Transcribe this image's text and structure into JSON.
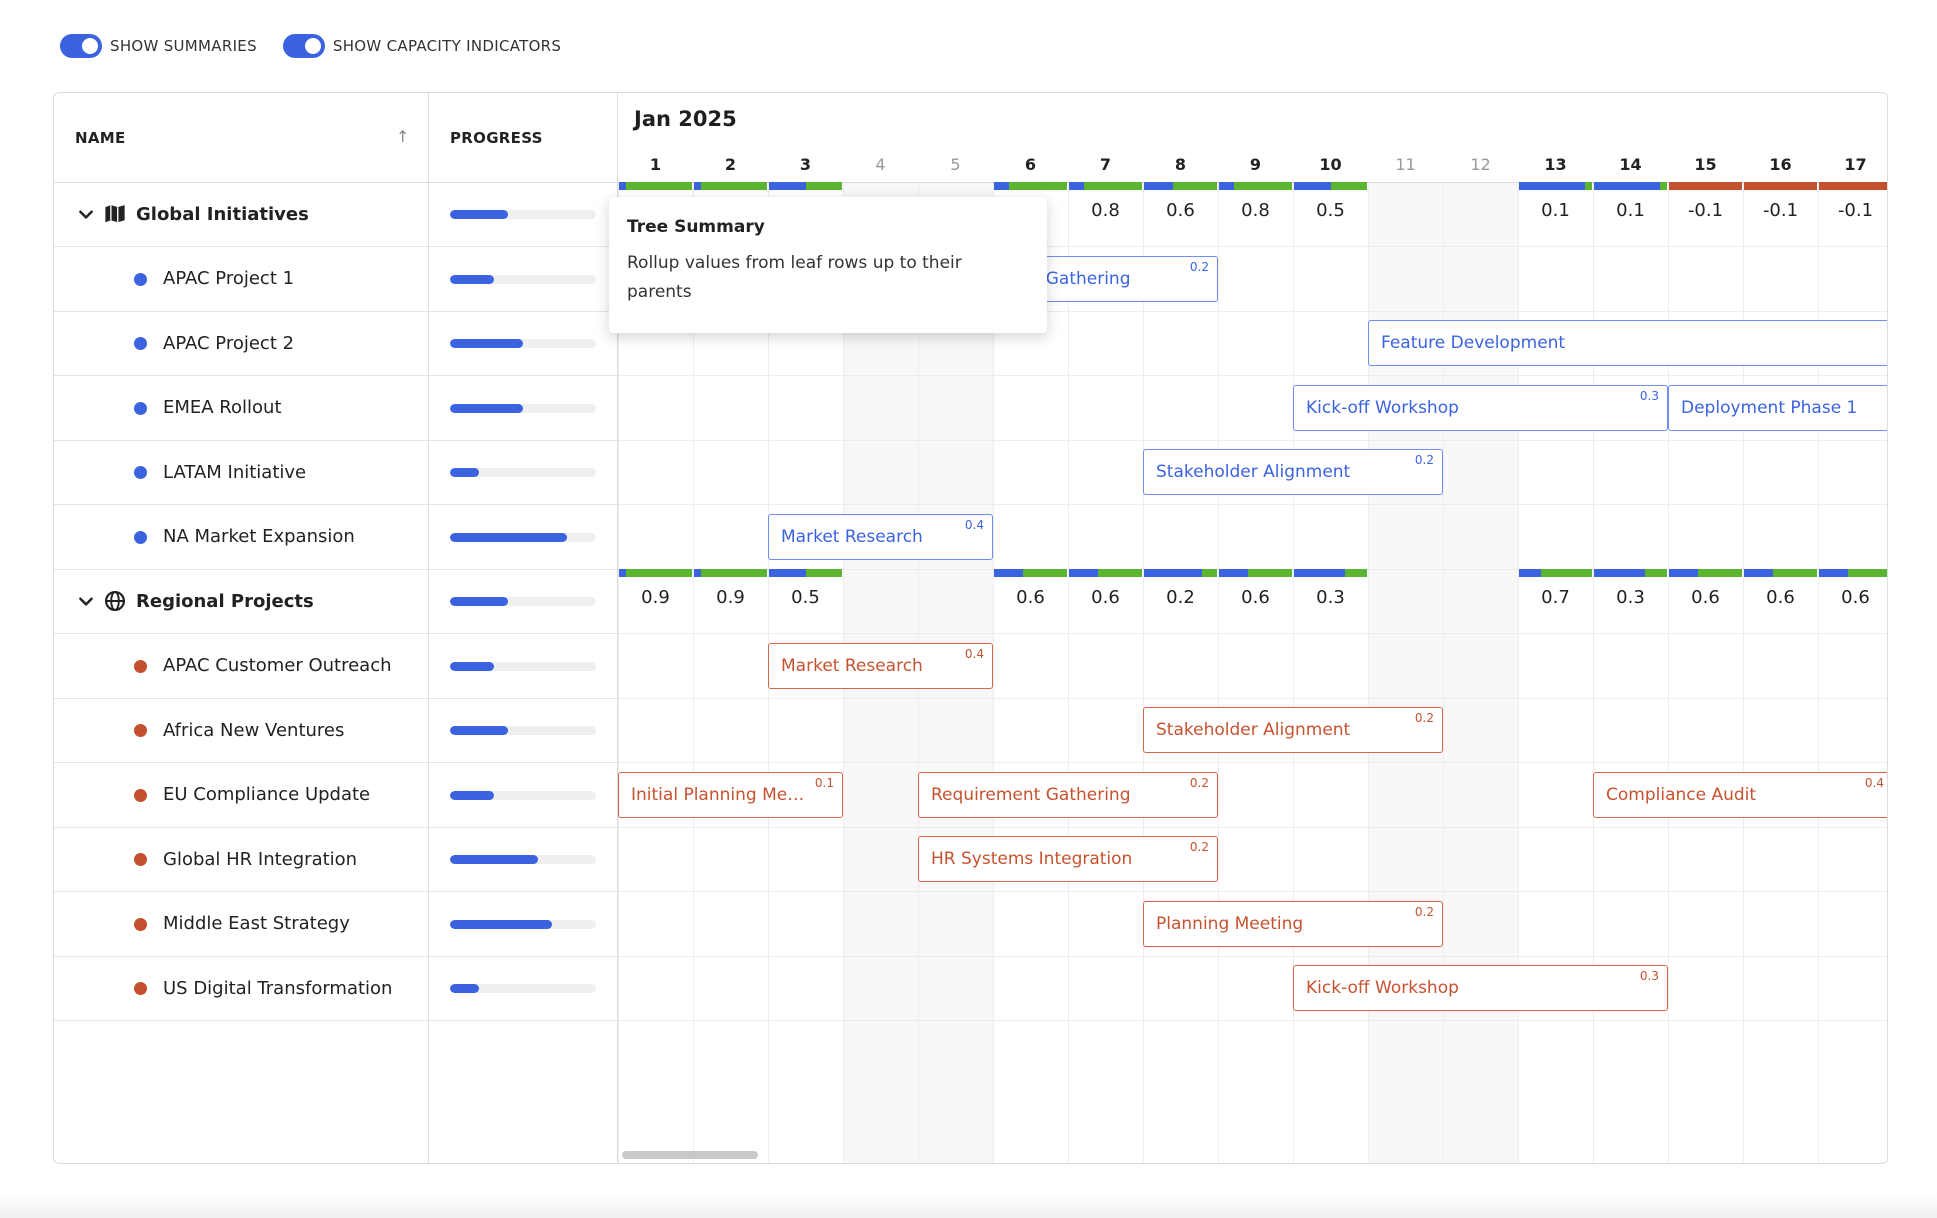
{
  "toggles": [
    {
      "label": "SHOW SUMMARIES",
      "on": true
    },
    {
      "label": "SHOW CAPACITY INDICATORS",
      "on": true
    }
  ],
  "columns": {
    "name": "NAME",
    "progress": "PROGRESS"
  },
  "timeline": {
    "month": "Jan 2025",
    "days": [
      "1",
      "2",
      "3",
      "4",
      "5",
      "6",
      "7",
      "8",
      "9",
      "10",
      "11",
      "12",
      "13",
      "14",
      "15",
      "16",
      "17"
    ],
    "weekend_days": [
      "4",
      "5",
      "11",
      "12"
    ]
  },
  "colors": {
    "accent": "#3b63e0",
    "capacity_ok": "#5cb531",
    "capacity_over": "#c5502f",
    "task_blue": "#3b63e0",
    "task_orange": "#c7522f"
  },
  "rows": [
    {
      "type": "parent",
      "name": "Global Initiatives",
      "icon": "map-icon",
      "progress": 0.4,
      "summary": [
        "",
        "",
        "",
        "",
        "",
        "",
        "0.8",
        "0.6",
        "0.8",
        "0.5",
        "",
        "",
        "0.1",
        "0.1",
        "-0.1",
        "-0.1",
        "-0.1"
      ]
    },
    {
      "type": "child",
      "name": "APAC Project 1",
      "dot": "#3b63e0",
      "progress": 0.3,
      "tasks": [
        {
          "label": "Requirement Gathering",
          "value": "0.2",
          "color": "blue",
          "start": 5,
          "days": 4
        }
      ]
    },
    {
      "type": "child",
      "name": "APAC Project 2",
      "dot": "#3b63e0",
      "progress": 0.5,
      "tasks": [
        {
          "label": "Feature Development",
          "value": "",
          "color": "blue",
          "start": 11,
          "days": 7
        }
      ]
    },
    {
      "type": "child",
      "name": "EMEA Rollout",
      "dot": "#3b63e0",
      "progress": 0.5,
      "tasks": [
        {
          "label": "Kick-off Workshop",
          "value": "0.3",
          "color": "blue",
          "start": 10,
          "days": 5
        },
        {
          "label": "Deployment Phase 1",
          "value": "",
          "color": "blue",
          "start": 15,
          "days": 3
        }
      ]
    },
    {
      "type": "child",
      "name": "LATAM Initiative",
      "dot": "#3b63e0",
      "progress": 0.2,
      "tasks": [
        {
          "label": "Stakeholder Alignment",
          "value": "0.2",
          "color": "blue",
          "start": 8,
          "days": 4
        }
      ]
    },
    {
      "type": "child",
      "name": "NA Market Expansion",
      "dot": "#3b63e0",
      "progress": 0.8,
      "tasks": [
        {
          "label": "Market Research",
          "value": "0.4",
          "color": "blue",
          "start": 3,
          "days": 3
        }
      ]
    },
    {
      "type": "parent",
      "name": "Regional Projects",
      "icon": "globe-icon",
      "progress": 0.4,
      "summary": [
        "0.9",
        "0.9",
        "0.5",
        "",
        "",
        "0.6",
        "0.6",
        "0.2",
        "0.6",
        "0.3",
        "",
        "",
        "0.7",
        "0.3",
        "0.6",
        "0.6",
        "0.6"
      ]
    },
    {
      "type": "child",
      "name": "APAC Customer Outreach",
      "dot": "#c5502f",
      "progress": 0.3,
      "tasks": [
        {
          "label": "Market Research",
          "value": "0.4",
          "color": "orange",
          "start": 3,
          "days": 3
        }
      ]
    },
    {
      "type": "child",
      "name": "Africa New Ventures",
      "dot": "#c5502f",
      "progress": 0.4,
      "tasks": [
        {
          "label": "Stakeholder Alignment",
          "value": "0.2",
          "color": "orange",
          "start": 8,
          "days": 4
        }
      ]
    },
    {
      "type": "child",
      "name": "EU Compliance Update",
      "dot": "#c5502f",
      "progress": 0.3,
      "tasks": [
        {
          "label": "Initial Planning Meeting",
          "value": "0.1",
          "color": "orange",
          "start": 1,
          "days": 3
        },
        {
          "label": "Requirement Gathering",
          "value": "0.2",
          "color": "orange",
          "start": 5,
          "days": 4
        },
        {
          "label": "Compliance Audit",
          "value": "0.4",
          "color": "orange",
          "start": 14,
          "days": 4
        }
      ]
    },
    {
      "type": "child",
      "name": "Global HR Integration",
      "dot": "#c5502f",
      "progress": 0.6,
      "tasks": [
        {
          "label": "HR Systems Integration",
          "value": "0.2",
          "color": "orange",
          "start": 5,
          "days": 4
        }
      ]
    },
    {
      "type": "child",
      "name": "Middle East Strategy",
      "dot": "#c5502f",
      "progress": 0.7,
      "tasks": [
        {
          "label": "Planning Meeting",
          "value": "0.2",
          "color": "orange",
          "start": 8,
          "days": 4
        }
      ]
    },
    {
      "type": "child",
      "name": "US Digital Transformation",
      "dot": "#c5502f",
      "progress": 0.2,
      "tasks": [
        {
          "label": "Kick-off Workshop",
          "value": "0.3",
          "color": "orange",
          "start": 10,
          "days": 5
        }
      ]
    }
  ],
  "capacity": [
    {
      "row": 0,
      "segments": [
        {
          "day": 1,
          "parts": [
            [
              "#3b63e0",
              0.1
            ],
            [
              "#5cb531",
              0.9
            ]
          ]
        },
        {
          "day": 2,
          "parts": [
            [
              "#3b63e0",
              0.1
            ],
            [
              "#5cb531",
              0.9
            ]
          ]
        },
        {
          "day": 3,
          "parts": [
            [
              "#3b63e0",
              0.5
            ],
            [
              "#5cb531",
              0.5
            ]
          ]
        },
        {
          "day": 6,
          "parts": [
            [
              "#3b63e0",
              0.2
            ],
            [
              "#5cb531",
              0.8
            ]
          ]
        },
        {
          "day": 7,
          "parts": [
            [
              "#3b63e0",
              0.2
            ],
            [
              "#5cb531",
              0.8
            ]
          ]
        },
        {
          "day": 8,
          "parts": [
            [
              "#3b63e0",
              0.4
            ],
            [
              "#5cb531",
              0.6
            ]
          ]
        },
        {
          "day": 9,
          "parts": [
            [
              "#3b63e0",
              0.2
            ],
            [
              "#5cb531",
              0.8
            ]
          ]
        },
        {
          "day": 10,
          "parts": [
            [
              "#3b63e0",
              0.5
            ],
            [
              "#5cb531",
              0.5
            ]
          ]
        },
        {
          "day": 13,
          "parts": [
            [
              "#3b63e0",
              0.9
            ],
            [
              "#5cb531",
              0.1
            ]
          ]
        },
        {
          "day": 14,
          "parts": [
            [
              "#3b63e0",
              0.9
            ],
            [
              "#5cb531",
              0.1
            ]
          ]
        },
        {
          "day": 15,
          "parts": [
            [
              "#c5502f",
              1.0
            ]
          ]
        },
        {
          "day": 16,
          "parts": [
            [
              "#c5502f",
              1.0
            ]
          ]
        },
        {
          "day": 17,
          "parts": [
            [
              "#c5502f",
              1.0
            ]
          ]
        }
      ]
    },
    {
      "row": 6,
      "segments": [
        {
          "day": 1,
          "parts": [
            [
              "#3b63e0",
              0.1
            ],
            [
              "#5cb531",
              0.9
            ]
          ]
        },
        {
          "day": 2,
          "parts": [
            [
              "#3b63e0",
              0.1
            ],
            [
              "#5cb531",
              0.9
            ]
          ]
        },
        {
          "day": 3,
          "parts": [
            [
              "#3b63e0",
              0.5
            ],
            [
              "#5cb531",
              0.5
            ]
          ]
        },
        {
          "day": 6,
          "parts": [
            [
              "#3b63e0",
              0.4
            ],
            [
              "#5cb531",
              0.6
            ]
          ]
        },
        {
          "day": 7,
          "parts": [
            [
              "#3b63e0",
              0.4
            ],
            [
              "#5cb531",
              0.6
            ]
          ]
        },
        {
          "day": 8,
          "parts": [
            [
              "#3b63e0",
              0.8
            ],
            [
              "#5cb531",
              0.2
            ]
          ]
        },
        {
          "day": 9,
          "parts": [
            [
              "#3b63e0",
              0.4
            ],
            [
              "#5cb531",
              0.6
            ]
          ]
        },
        {
          "day": 10,
          "parts": [
            [
              "#3b63e0",
              0.7
            ],
            [
              "#5cb531",
              0.3
            ]
          ]
        },
        {
          "day": 13,
          "parts": [
            [
              "#3b63e0",
              0.3
            ],
            [
              "#5cb531",
              0.7
            ]
          ]
        },
        {
          "day": 14,
          "parts": [
            [
              "#3b63e0",
              0.7
            ],
            [
              "#5cb531",
              0.3
            ]
          ]
        },
        {
          "day": 15,
          "parts": [
            [
              "#3b63e0",
              0.4
            ],
            [
              "#5cb531",
              0.6
            ]
          ]
        },
        {
          "day": 16,
          "parts": [
            [
              "#3b63e0",
              0.4
            ],
            [
              "#5cb531",
              0.6
            ]
          ]
        },
        {
          "day": 17,
          "parts": [
            [
              "#3b63e0",
              0.4
            ],
            [
              "#5cb531",
              0.6
            ]
          ]
        }
      ]
    }
  ],
  "tooltip": {
    "title": "Tree Summary",
    "body": "Rollup values from leaf rows up to their parents"
  }
}
